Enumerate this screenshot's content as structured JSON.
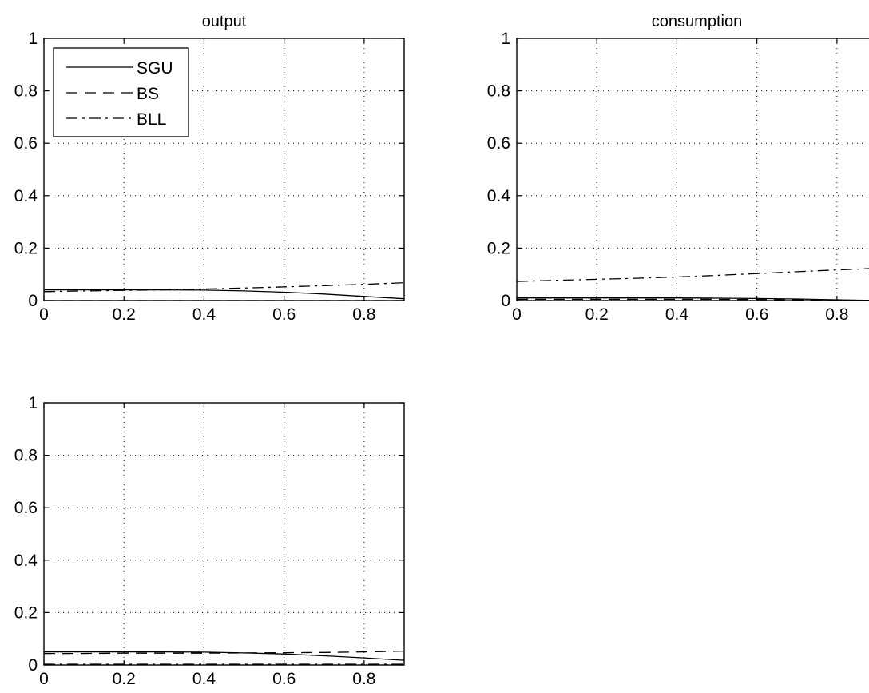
{
  "chart_data": [
    {
      "type": "line",
      "title": "output",
      "xlabel": "",
      "ylabel": "",
      "xlim": [
        0,
        0.9
      ],
      "ylim": [
        0,
        1
      ],
      "xticks": [
        "0",
        "0.2",
        "0.4",
        "0.6",
        "0.8"
      ],
      "yticks": [
        "0",
        "0.2",
        "0.4",
        "0.6",
        "0.8",
        "1"
      ],
      "grid": true,
      "legend": "top-left",
      "series": [
        {
          "name": "SGU",
          "style": "solid",
          "x": [
            0,
            0.1,
            0.2,
            0.3,
            0.4,
            0.5,
            0.6,
            0.7,
            0.8,
            0.9
          ],
          "y": [
            0.041,
            0.041,
            0.041,
            0.041,
            0.04,
            0.037,
            0.032,
            0.025,
            0.016,
            0.007
          ]
        },
        {
          "name": "BS",
          "style": "dashed",
          "x": [
            0,
            0.1,
            0.2,
            0.3,
            0.4,
            0.5,
            0.6,
            0.7,
            0.8,
            0.9
          ],
          "y": [
            0.0,
            0.0,
            0.0,
            0.0,
            0.0,
            0.0,
            0.0,
            0.0,
            0.0,
            0.0
          ]
        },
        {
          "name": "BLL",
          "style": "dashdot",
          "x": [
            0,
            0.1,
            0.2,
            0.3,
            0.4,
            0.5,
            0.6,
            0.7,
            0.8,
            0.9
          ],
          "y": [
            0.034,
            0.037,
            0.039,
            0.041,
            0.044,
            0.048,
            0.052,
            0.057,
            0.062,
            0.068
          ]
        }
      ]
    },
    {
      "type": "line",
      "title": "consumption",
      "xlabel": "",
      "ylabel": "",
      "xlim": [
        0,
        0.9
      ],
      "ylim": [
        0,
        1
      ],
      "xticks": [
        "0",
        "0.2",
        "0.4",
        "0.6",
        "0.8"
      ],
      "yticks": [
        "0",
        "0.2",
        "0.4",
        "0.6",
        "0.8",
        "1"
      ],
      "grid": true,
      "series": [
        {
          "name": "SGU",
          "style": "solid",
          "x": [
            0,
            0.1,
            0.2,
            0.3,
            0.4,
            0.5,
            0.6,
            0.7,
            0.8,
            0.9
          ],
          "y": [
            0.01,
            0.01,
            0.01,
            0.01,
            0.01,
            0.009,
            0.008,
            0.006,
            0.003,
            0.0
          ]
        },
        {
          "name": "BS",
          "style": "dashed",
          "x": [
            0,
            0.1,
            0.2,
            0.3,
            0.4,
            0.5,
            0.6,
            0.7,
            0.8,
            0.9
          ],
          "y": [
            0.005,
            0.005,
            0.005,
            0.005,
            0.005,
            0.005,
            0.004,
            0.003,
            0.001,
            0.0
          ]
        },
        {
          "name": "BLL",
          "style": "dashdot",
          "x": [
            0,
            0.1,
            0.2,
            0.3,
            0.4,
            0.5,
            0.6,
            0.7,
            0.8,
            0.9
          ],
          "y": [
            0.073,
            0.077,
            0.081,
            0.085,
            0.09,
            0.096,
            0.103,
            0.11,
            0.117,
            0.123
          ]
        }
      ]
    },
    {
      "type": "line",
      "title": "",
      "xlabel": "",
      "ylabel": "",
      "xlim": [
        0,
        0.9
      ],
      "ylim": [
        0,
        1
      ],
      "xticks": [
        "0",
        "0.2",
        "0.4",
        "0.6",
        "0.8"
      ],
      "yticks": [
        "0",
        "0.2",
        "0.4",
        "0.6",
        "0.8",
        "1"
      ],
      "grid": true,
      "series": [
        {
          "name": "SGU",
          "style": "solid",
          "x": [
            0,
            0.1,
            0.2,
            0.3,
            0.4,
            0.5,
            0.6,
            0.7,
            0.8,
            0.9
          ],
          "y": [
            0.05,
            0.05,
            0.05,
            0.05,
            0.049,
            0.046,
            0.042,
            0.035,
            0.027,
            0.018
          ]
        },
        {
          "name": "BS",
          "style": "dashed",
          "x": [
            0,
            0.1,
            0.2,
            0.3,
            0.4,
            0.5,
            0.6,
            0.7,
            0.8,
            0.9
          ],
          "y": [
            0.044,
            0.044,
            0.045,
            0.045,
            0.045,
            0.046,
            0.047,
            0.048,
            0.05,
            0.053
          ]
        },
        {
          "name": "BLL",
          "style": "dashdot",
          "x": [
            0,
            0.1,
            0.2,
            0.3,
            0.4,
            0.5,
            0.6,
            0.7,
            0.8,
            0.9
          ],
          "y": [
            0.003,
            0.003,
            0.003,
            0.003,
            0.003,
            0.003,
            0.003,
            0.003,
            0.003,
            0.003
          ]
        }
      ]
    }
  ]
}
